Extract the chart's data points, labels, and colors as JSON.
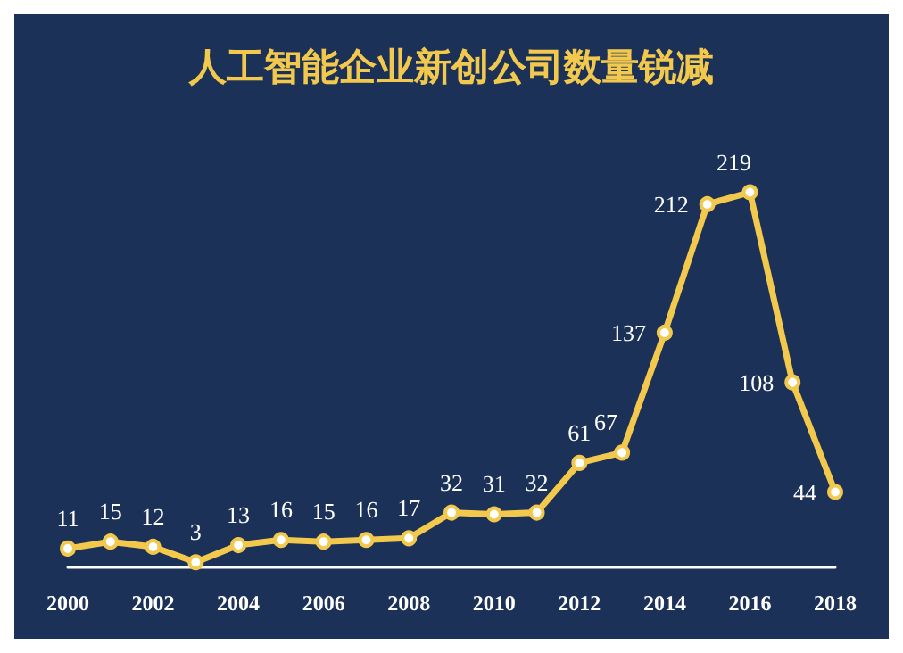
{
  "chart_data": {
    "type": "line",
    "title": "人工智能企业新创公司数量锐减",
    "x": [
      2000,
      2001,
      2002,
      2003,
      2004,
      2005,
      2006,
      2007,
      2008,
      2009,
      2010,
      2011,
      2012,
      2013,
      2014,
      2015,
      2016,
      2017,
      2018
    ],
    "series": [
      {
        "color": "#f2c94c",
        "values": [
          11,
          15,
          12,
          3,
          13,
          16,
          15,
          16,
          17,
          32,
          31,
          32,
          61,
          67,
          137,
          212,
          219,
          108,
          44
        ]
      }
    ],
    "xlim": [
      2000,
      2018
    ],
    "xticks": [
      2000,
      2002,
      2004,
      2006,
      2008,
      2010,
      2012,
      2014,
      2016,
      2018
    ],
    "data_labels": true,
    "grid": false,
    "marker": "circle",
    "line_style": "solid"
  }
}
